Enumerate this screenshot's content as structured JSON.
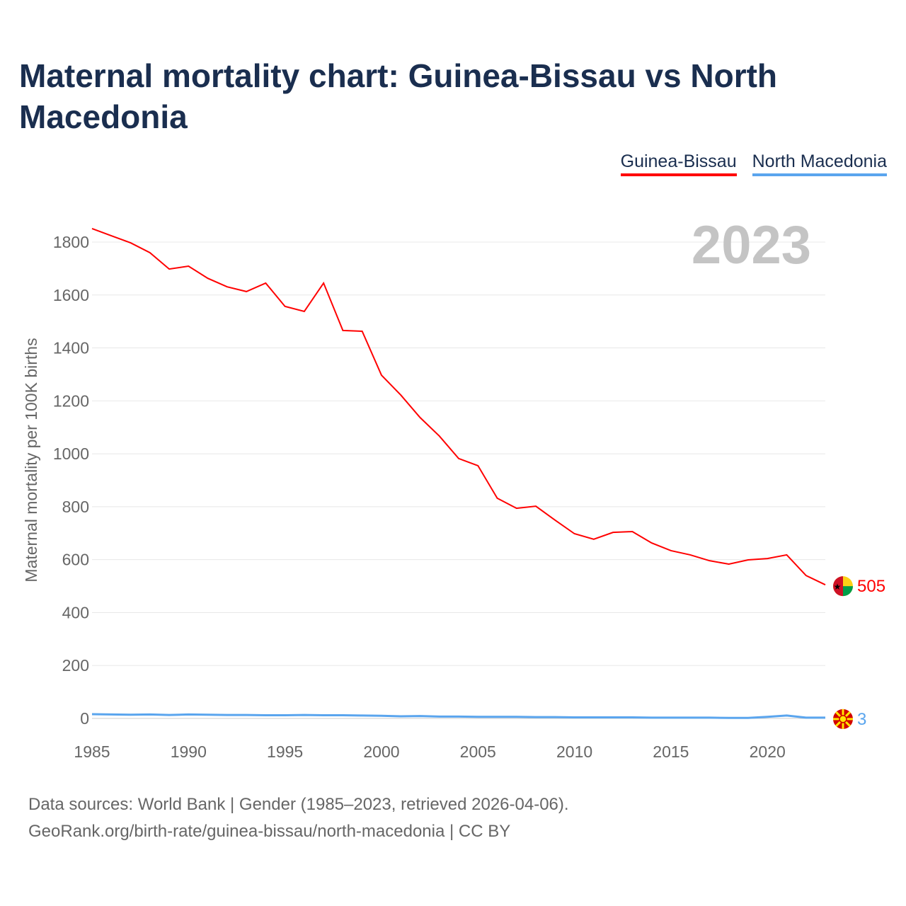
{
  "title": "Maternal mortality chart: Guinea-Bissau vs North Macedonia",
  "source_line1": "Data sources: World Bank | Gender (1985–2023, retrieved 2026-04-06).",
  "source_line2": "GeoRank.org/birth-rate/guinea-bissau/north-macedonia | CC BY",
  "chart_data": {
    "type": "line",
    "title": "Maternal mortality chart: Guinea-Bissau vs North Macedonia",
    "ylabel": "Maternal mortality per 100K births",
    "xlabel": "",
    "year_label": "2023",
    "ylim": [
      0,
      1850
    ],
    "xlim": [
      1985,
      2023
    ],
    "yticks": [
      0,
      200,
      400,
      600,
      800,
      1000,
      1200,
      1400,
      1600,
      1800
    ],
    "xticks": [
      1985,
      1990,
      1995,
      2000,
      2005,
      2010,
      2015,
      2020
    ],
    "grid": true,
    "legend_position": "top-right",
    "x": [
      1985,
      1986,
      1987,
      1988,
      1989,
      1990,
      1991,
      1992,
      1993,
      1994,
      1995,
      1996,
      1997,
      1998,
      1999,
      2000,
      2001,
      2002,
      2003,
      2004,
      2005,
      2006,
      2007,
      2008,
      2009,
      2010,
      2011,
      2012,
      2013,
      2014,
      2015,
      2016,
      2017,
      2018,
      2019,
      2020,
      2021,
      2022,
      2023
    ],
    "series": [
      {
        "name": "Guinea-Bissau",
        "color": "#ff0000",
        "end_label": "505",
        "values": [
          1851,
          1824,
          1797,
          1760,
          1698,
          1709,
          1663,
          1631,
          1613,
          1645,
          1557,
          1538,
          1645,
          1466,
          1463,
          1297,
          1222,
          1137,
          1067,
          982,
          955,
          832,
          794,
          802,
          749,
          698,
          677,
          703,
          706,
          663,
          634,
          618,
          596,
          583,
          599,
          604,
          618,
          540,
          505
        ]
      },
      {
        "name": "North Macedonia",
        "color": "#5aa5ee",
        "end_label": "3",
        "values": [
          16,
          15,
          14,
          15,
          13,
          15,
          14,
          13,
          13,
          12,
          12,
          13,
          12,
          12,
          11,
          10,
          8,
          9,
          7,
          7,
          6,
          6,
          6,
          5,
          5,
          4,
          4,
          4,
          4,
          3,
          3,
          3,
          3,
          2,
          2,
          6,
          11,
          3,
          3
        ]
      }
    ]
  }
}
